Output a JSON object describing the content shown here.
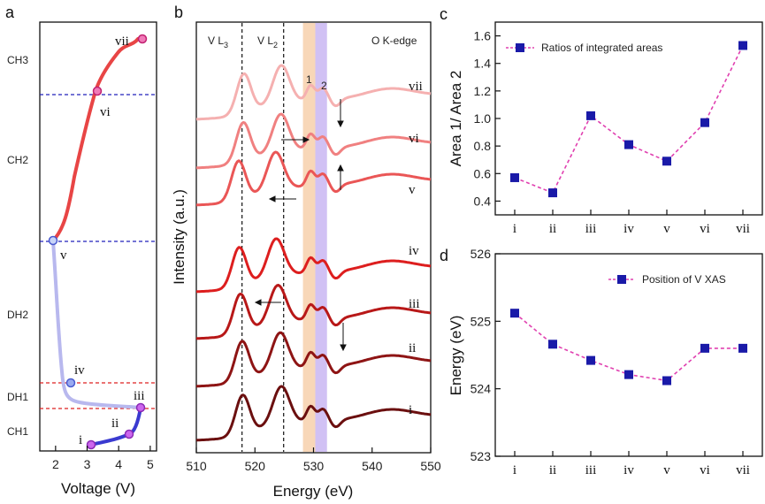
{
  "panels": {
    "a": "a",
    "b": "b",
    "c": "c",
    "d": "d"
  },
  "chart_data": [
    {
      "id": "a",
      "type": "line",
      "xlabel": "Voltage (V)",
      "x_ticks": [
        "2",
        "3",
        "4",
        "5"
      ],
      "xlim": [
        1.5,
        5.2
      ],
      "y_regions": [
        "CH3",
        "CH2",
        "DH2",
        "DH1",
        "CH1"
      ],
      "stages": [
        {
          "name": "i",
          "voltage": 3.2
        },
        {
          "name": "ii",
          "voltage": 4.35
        },
        {
          "name": "iii",
          "voltage": 4.8
        },
        {
          "name": "iv",
          "voltage": 2.5
        },
        {
          "name": "v",
          "voltage": 2.0
        },
        {
          "name": "vi",
          "voltage": 3.3
        },
        {
          "name": "vii",
          "voltage": 4.8
        }
      ],
      "colors": {
        "charge1": "#3a3ad0",
        "discharge": "#b8b8ee",
        "charge": "#e84545",
        "guide_blue": "#2222bb",
        "guide_red": "#dd2222"
      }
    },
    {
      "id": "b",
      "type": "line",
      "xlabel": "Energy (eV)",
      "ylabel": "Intensity (a.u.)",
      "x_ticks": [
        "510",
        "520",
        "530",
        "540",
        "550"
      ],
      "xlim": [
        510,
        550
      ],
      "edge_label": "O K-edge",
      "vl3_label": "V L",
      "vl3_sub": "3",
      "vl2_label": "V L",
      "vl2_sub": "2",
      "band1_label": "1",
      "band2_label": "2",
      "band1_range": [
        528.2,
        530.3
      ],
      "band2_range": [
        530.3,
        532.3
      ],
      "vl3_energy": 517.8,
      "vl2_energy": 524.9,
      "series": [
        {
          "name": "i",
          "color": "#6b0f0f"
        },
        {
          "name": "ii",
          "color": "#8e1414"
        },
        {
          "name": "iii",
          "color": "#b81818"
        },
        {
          "name": "iv",
          "color": "#dd1e1e"
        },
        {
          "name": "v",
          "color": "#ea5656"
        },
        {
          "name": "vi",
          "color": "#f08080"
        },
        {
          "name": "vii",
          "color": "#f5b0b0"
        }
      ]
    },
    {
      "id": "c",
      "type": "line",
      "ylabel": "Area 1/ Area 2",
      "categories": [
        "i",
        "ii",
        "iii",
        "iv",
        "v",
        "vi",
        "vii"
      ],
      "values": [
        0.57,
        0.46,
        1.02,
        0.81,
        0.69,
        0.97,
        1.53
      ],
      "ylim": [
        0.3,
        1.7
      ],
      "y_ticks": [
        "0.4",
        "0.6",
        "0.8",
        "1.0",
        "1.2",
        "1.4",
        "1.6"
      ],
      "legend": "Ratios of integrated areas",
      "color_marker": "#1a1aa8",
      "color_line": "#e040b0"
    },
    {
      "id": "d",
      "type": "line",
      "ylabel": "Energy (eV)",
      "categories": [
        "i",
        "ii",
        "iii",
        "iv",
        "v",
        "vi",
        "vii"
      ],
      "values": [
        525.12,
        524.66,
        524.42,
        524.21,
        524.12,
        524.6,
        524.6
      ],
      "ylim": [
        523,
        526
      ],
      "y_ticks": [
        "523",
        "524",
        "525",
        "526"
      ],
      "legend": "Position of V XAS",
      "color_marker": "#1a1aa8",
      "color_line": "#e040b0"
    }
  ]
}
